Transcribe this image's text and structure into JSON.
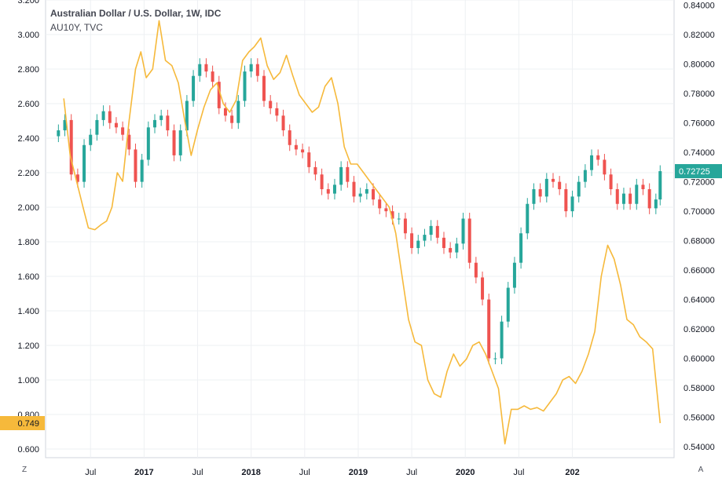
{
  "chart_data": {
    "type": "line",
    "title": "Australian Dollar / U.S. Dollar, 1W, IDC",
    "subtitle": "AU10Y, TVC",
    "x_labels": [
      "Jul",
      "2017",
      "Jul",
      "2018",
      "Jul",
      "2019",
      "Jul",
      "2020",
      "Jul",
      "202"
    ],
    "left_axis": {
      "ylim": [
        0.55,
        3.2
      ],
      "ticks": [
        "3.200",
        "3.000",
        "2.800",
        "2.600",
        "2.400",
        "2.200",
        "2.000",
        "1.800",
        "1.600",
        "1.400",
        "1.200",
        "1.000",
        "0.800",
        "0.600"
      ],
      "last_value_label": "0.749"
    },
    "right_axis": {
      "ylim": [
        0.5325,
        0.8436
      ],
      "ticks": [
        "0.84000",
        "0.82000",
        "0.80000",
        "0.78000",
        "0.76000",
        "0.74000",
        "0.72000",
        "0.70000",
        "0.68000",
        "0.66000",
        "0.64000",
        "0.62000",
        "0.60000",
        "0.58000",
        "0.56000",
        "0.54000"
      ],
      "last_value_label": "0.72725"
    },
    "series": [
      {
        "name": "AU10Y",
        "kind": "line",
        "color": "#f6b93b",
        "axis": "left",
        "x": [
          2016.25,
          2016.31,
          2016.37,
          2016.43,
          2016.48,
          2016.54,
          2016.6,
          2016.65,
          2016.7,
          2016.75,
          2016.8,
          2016.86,
          2016.92,
          2016.97,
          2017.02,
          2017.08,
          2017.14,
          2017.2,
          2017.26,
          2017.32,
          2017.38,
          2017.44,
          2017.5,
          2017.56,
          2017.62,
          2017.68,
          2017.74,
          2017.8,
          2017.86,
          2017.92,
          2017.98,
          2018.03,
          2018.09,
          2018.15,
          2018.21,
          2018.27,
          2018.33,
          2018.39,
          2018.45,
          2018.51,
          2018.57,
          2018.63,
          2018.69,
          2018.75,
          2018.81,
          2018.87,
          2018.93,
          2018.99,
          2019.05,
          2019.11,
          2019.17,
          2019.23,
          2019.29,
          2019.35,
          2019.41,
          2019.47,
          2019.53,
          2019.59,
          2019.65,
          2019.71,
          2019.77,
          2019.83,
          2019.89,
          2019.95,
          2020.01,
          2020.07,
          2020.13,
          2020.19,
          2020.25,
          2020.31,
          2020.37,
          2020.43,
          2020.49,
          2020.55,
          2020.61,
          2020.67,
          2020.73,
          2020.79,
          2020.85,
          2020.91,
          2020.97,
          2021.03,
          2021.09,
          2021.15,
          2021.21,
          2021.27,
          2021.33,
          2021.39,
          2021.45,
          2021.51,
          2021.57,
          2021.63,
          2021.69,
          2021.75,
          2021.82
        ],
        "y": [
          2.63,
          2.3,
          2.15,
          2.0,
          1.88,
          1.87,
          1.9,
          1.92,
          2.0,
          2.2,
          2.15,
          2.5,
          2.8,
          2.9,
          2.75,
          2.8,
          3.08,
          2.85,
          2.82,
          2.72,
          2.5,
          2.3,
          2.45,
          2.58,
          2.68,
          2.72,
          2.6,
          2.55,
          2.62,
          2.85,
          2.9,
          2.93,
          2.98,
          2.82,
          2.74,
          2.78,
          2.88,
          2.76,
          2.65,
          2.6,
          2.55,
          2.58,
          2.7,
          2.75,
          2.6,
          2.35,
          2.25,
          2.25,
          2.2,
          2.15,
          2.1,
          2.05,
          2.0,
          1.85,
          1.6,
          1.35,
          1.22,
          1.2,
          1.0,
          0.92,
          0.9,
          1.05,
          1.15,
          1.08,
          1.12,
          1.2,
          1.22,
          1.15,
          1.05,
          0.95,
          0.63,
          0.83,
          0.83,
          0.85,
          0.83,
          0.84,
          0.82,
          0.87,
          0.92,
          1.0,
          1.02,
          0.98,
          1.05,
          1.15,
          1.28,
          1.6,
          1.78,
          1.7,
          1.55,
          1.35,
          1.32,
          1.25,
          1.22,
          1.18,
          0.75
        ]
      },
      {
        "name": "Australian Dollar / U.S. Dollar",
        "kind": "candlestick",
        "axis": "right",
        "up_color": "#26a69a",
        "down_color": "#ef5350",
        "x": [
          2016.2,
          2016.26,
          2016.32,
          2016.38,
          2016.44,
          2016.5,
          2016.56,
          2016.62,
          2016.68,
          2016.74,
          2016.8,
          2016.86,
          2016.92,
          2016.98,
          2017.04,
          2017.1,
          2017.16,
          2017.22,
          2017.28,
          2017.34,
          2017.4,
          2017.46,
          2017.52,
          2017.58,
          2017.64,
          2017.7,
          2017.76,
          2017.82,
          2017.88,
          2017.94,
          2018.0,
          2018.06,
          2018.12,
          2018.18,
          2018.24,
          2018.3,
          2018.36,
          2018.42,
          2018.48,
          2018.54,
          2018.6,
          2018.66,
          2018.72,
          2018.78,
          2018.84,
          2018.9,
          2018.96,
          2019.02,
          2019.08,
          2019.14,
          2019.2,
          2019.26,
          2019.32,
          2019.38,
          2019.44,
          2019.5,
          2019.56,
          2019.62,
          2019.68,
          2019.74,
          2019.8,
          2019.86,
          2019.92,
          2019.98,
          2020.04,
          2020.1,
          2020.16,
          2020.22,
          2020.28,
          2020.34,
          2020.4,
          2020.46,
          2020.52,
          2020.58,
          2020.64,
          2020.7,
          2020.76,
          2020.82,
          2020.88,
          2020.94,
          2021.0,
          2021.06,
          2021.12,
          2021.18,
          2021.24,
          2021.3,
          2021.36,
          2021.42,
          2021.48,
          2021.54,
          2021.6,
          2021.66,
          2021.72,
          2021.78,
          2021.82
        ],
        "close": [
          0.755,
          0.762,
          0.725,
          0.72,
          0.745,
          0.752,
          0.762,
          0.768,
          0.76,
          0.757,
          0.752,
          0.742,
          0.72,
          0.735,
          0.757,
          0.762,
          0.765,
          0.755,
          0.738,
          0.755,
          0.775,
          0.792,
          0.8,
          0.795,
          0.788,
          0.77,
          0.765,
          0.76,
          0.775,
          0.795,
          0.8,
          0.792,
          0.775,
          0.77,
          0.765,
          0.755,
          0.745,
          0.742,
          0.74,
          0.73,
          0.725,
          0.715,
          0.712,
          0.718,
          0.73,
          0.72,
          0.71,
          0.712,
          0.715,
          0.708,
          0.702,
          0.7,
          0.695,
          0.695,
          0.685,
          0.675,
          0.68,
          0.684,
          0.69,
          0.682,
          0.675,
          0.672,
          0.678,
          0.695,
          0.665,
          0.655,
          0.64,
          0.6,
          0.6,
          0.625,
          0.648,
          0.665,
          0.685,
          0.705,
          0.715,
          0.71,
          0.722,
          0.72,
          0.715,
          0.7,
          0.71,
          0.72,
          0.728,
          0.738,
          0.735,
          0.725,
          0.715,
          0.705,
          0.712,
          0.705,
          0.718,
          0.715,
          0.702,
          0.708,
          0.72725
        ]
      }
    ]
  },
  "controls": {
    "left_corner_button": "Z",
    "right_corner_button": "A"
  },
  "colors": {
    "grid": "#eef0f3",
    "axis_text": "#131722",
    "au10y_line": "#f6b93b",
    "up": "#26a69a",
    "down": "#ef5350",
    "price_tag": "#26a69a",
    "yield_tag": "#f6b93b"
  }
}
